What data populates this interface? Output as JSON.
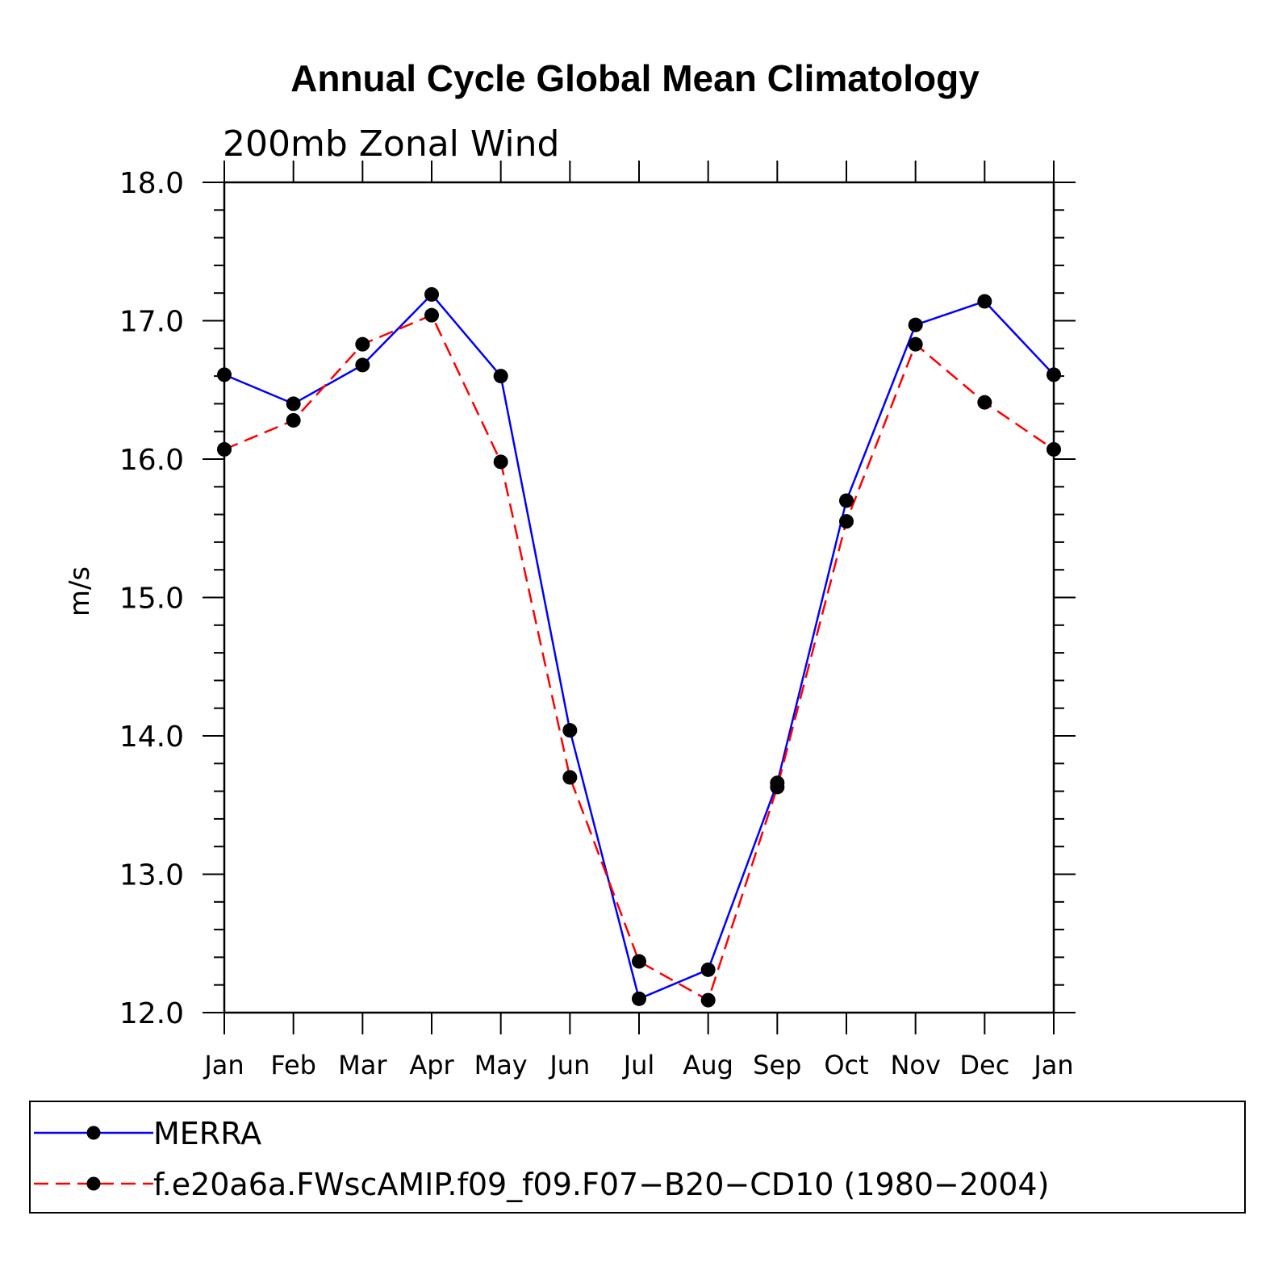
{
  "chart_data": {
    "type": "line",
    "title": "Annual Cycle Global Mean Climatology",
    "subtitle": "200mb Zonal Wind",
    "ylabel": "m/s",
    "xlabel": "",
    "ylim": [
      12.0,
      18.0
    ],
    "yticks": [
      "12.0",
      "13.0",
      "14.0",
      "15.0",
      "16.0",
      "17.0",
      "18.0"
    ],
    "categories": [
      "Jan",
      "Feb",
      "Mar",
      "Apr",
      "May",
      "Jun",
      "Jul",
      "Aug",
      "Sep",
      "Oct",
      "Nov",
      "Dec",
      "Jan"
    ],
    "series": [
      {
        "name": "MERRA",
        "color": "#0000ff",
        "dash": "solid",
        "values": [
          16.61,
          16.4,
          16.68,
          17.19,
          16.6,
          14.04,
          12.1,
          12.31,
          13.66,
          15.7,
          16.97,
          17.14,
          16.61
        ]
      },
      {
        "name": "f.e20a6a.FWscAMIP.f09_f09.F07−B20−CD10 (1980−2004)",
        "color": "#ff0000",
        "dash": "dashed",
        "values": [
          16.07,
          16.28,
          16.83,
          17.04,
          15.98,
          13.7,
          12.37,
          12.09,
          13.63,
          15.55,
          16.83,
          16.41,
          16.07
        ]
      }
    ],
    "legend": "bottom"
  }
}
